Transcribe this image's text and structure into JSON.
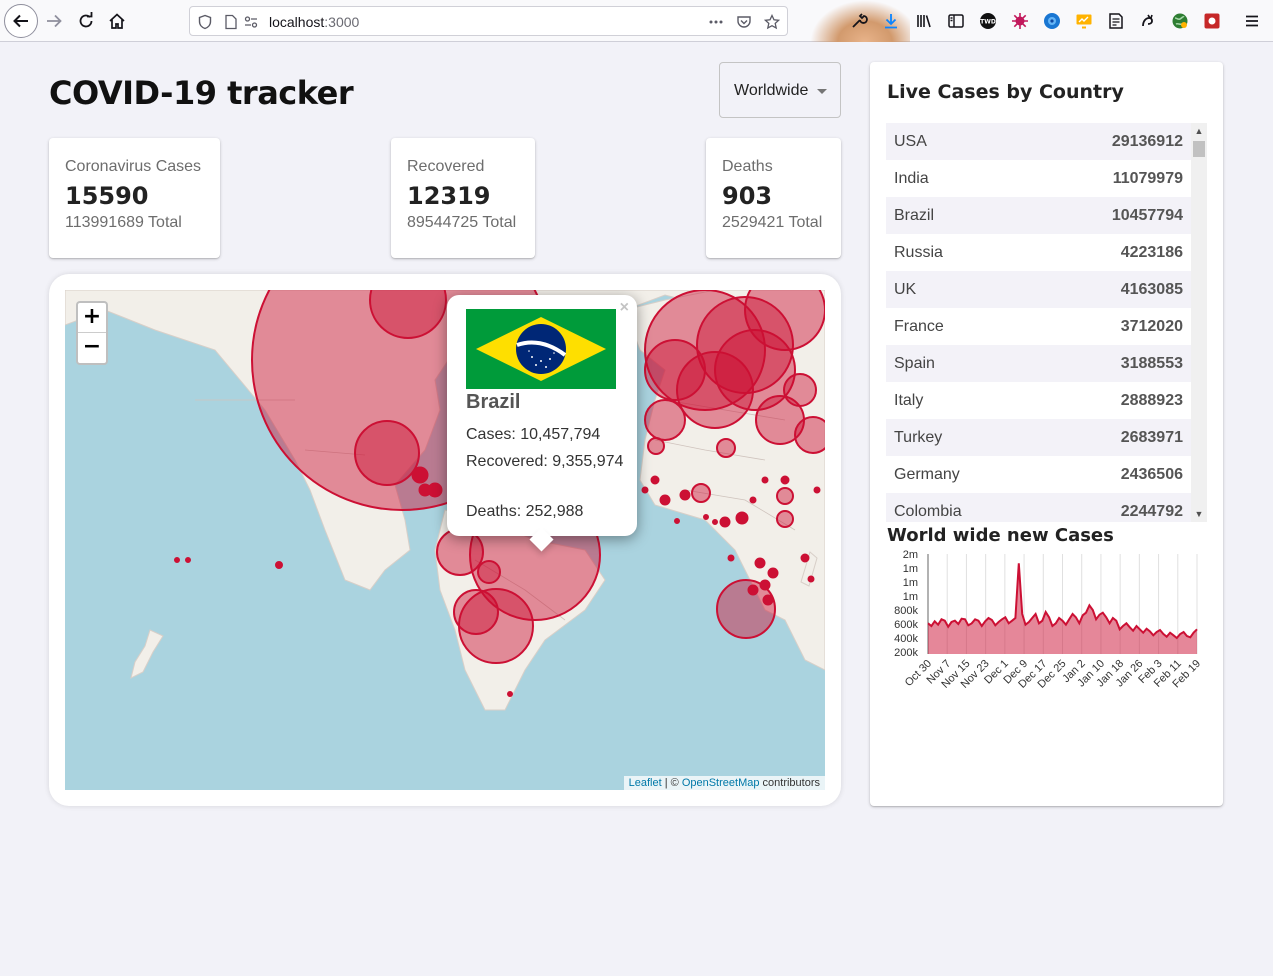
{
  "browser": {
    "url_host": "localhost",
    "url_port": ":3000"
  },
  "app": {
    "title": "COVID-19 tracker",
    "country_select": {
      "value": "Worldwide"
    }
  },
  "stats": {
    "cases": {
      "label": "Coronavirus Cases",
      "today": "15590",
      "total": "113991689 Total"
    },
    "recovered": {
      "label": "Recovered",
      "today": "12319",
      "total": "89544725 Total"
    },
    "deaths": {
      "label": "Deaths",
      "today": "903",
      "total": "2529421 Total"
    }
  },
  "map": {
    "zoom_in": "+",
    "zoom_out": "−",
    "attribution_leaflet": "Leaflet",
    "attribution_sep": " | © ",
    "attribution_osm": "OpenStreetMap",
    "attribution_tail": " contributors",
    "popup": {
      "close": "×",
      "country": "Brazil",
      "cases": "Cases: 10,457,794",
      "recovered": "Recovered: 9,355,974",
      "deaths": "Deaths: 252,988"
    },
    "colors": {
      "circle": "#cc1034",
      "land": "#f2efe9",
      "water": "#aad3df"
    }
  },
  "live_cases": {
    "title": "Live Cases by Country",
    "rows": [
      {
        "country": "USA",
        "cases": "29136912"
      },
      {
        "country": "India",
        "cases": "11079979"
      },
      {
        "country": "Brazil",
        "cases": "10457794"
      },
      {
        "country": "Russia",
        "cases": "4223186"
      },
      {
        "country": "UK",
        "cases": "4163085"
      },
      {
        "country": "France",
        "cases": "3712020"
      },
      {
        "country": "Spain",
        "cases": "3188553"
      },
      {
        "country": "Italy",
        "cases": "2888923"
      },
      {
        "country": "Turkey",
        "cases": "2683971"
      },
      {
        "country": "Germany",
        "cases": "2436506"
      },
      {
        "country": "Colombia",
        "cases": "2244792"
      }
    ]
  },
  "chart_title": "World wide new Cases",
  "chart_data": {
    "type": "area",
    "y_ticks": [
      "2m",
      "1m",
      "1m",
      "1m",
      "800k",
      "600k",
      "400k",
      "200k"
    ],
    "x_ticks": [
      "Oct 30",
      "Nov 7",
      "Nov 15",
      "Nov 23",
      "Dec 1",
      "Dec 9",
      "Dec 17",
      "Dec 25",
      "Jan 2",
      "Jan 10",
      "Jan 18",
      "Jan 26",
      "Feb 3",
      "Feb 11",
      "Feb 19"
    ],
    "ylim": [
      100000,
      1600000
    ],
    "values": [
      560000,
      520000,
      590000,
      540000,
      620000,
      600000,
      510000,
      580000,
      600000,
      550000,
      630000,
      620000,
      530000,
      560000,
      620000,
      600000,
      520000,
      590000,
      640000,
      610000,
      530000,
      580000,
      620000,
      650000,
      560000,
      600000,
      640000,
      1460000,
      700000,
      540000,
      580000,
      640000,
      700000,
      560000,
      600000,
      730000,
      650000,
      520000,
      560000,
      640000,
      600000,
      540000,
      620000,
      700000,
      650000,
      560000,
      680000,
      720000,
      830000,
      760000,
      620000,
      690000,
      720000,
      650000,
      560000,
      640000,
      600000,
      470000,
      520000,
      560000,
      500000,
      450000,
      520000,
      470000,
      420000,
      480000,
      440000,
      380000,
      430000,
      460000,
      400000,
      360000,
      420000,
      380000,
      340000,
      400000,
      430000,
      370000,
      350000,
      420000,
      470000
    ],
    "color": "#cc1034",
    "grid": "vertical"
  }
}
